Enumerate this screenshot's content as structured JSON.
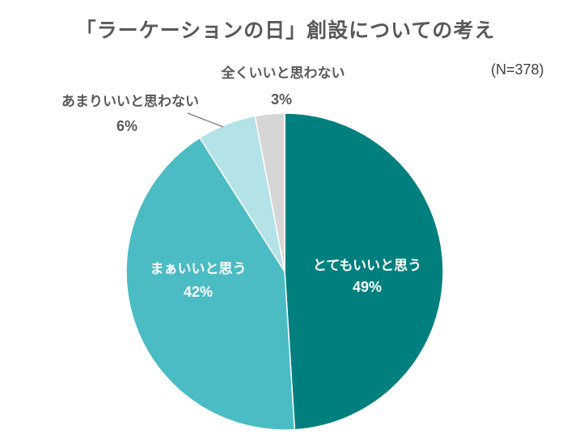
{
  "title": "「ラーケーションの日」創設についての考え",
  "sample_size": "(N=378)",
  "chart_data": {
    "type": "pie",
    "title": "「ラーケーションの日」創設についての考え",
    "subtitle": "(N=378)",
    "categories": [
      "とてもいいと思う",
      "まぁいいと思う",
      "あまりいいと思わない",
      "全くいいと思わない"
    ],
    "values": [
      49,
      42,
      6,
      3
    ],
    "unit": "%",
    "colors": [
      "#007f7f",
      "#4bbcc4",
      "#b3e3e6",
      "#d6d6d6"
    ],
    "start_angle": "12 o'clock, clockwise",
    "legend": "none (data labels)"
  },
  "labels": {
    "s0_name": "とてもいいと思う",
    "s0_pct": "49%",
    "s1_name": "まぁいいと思う",
    "s1_pct": "42%",
    "s2_name": "あまりいいと思わない",
    "s2_pct": "6%",
    "s3_name": "全くいいと思わない",
    "s3_pct": "3%"
  }
}
